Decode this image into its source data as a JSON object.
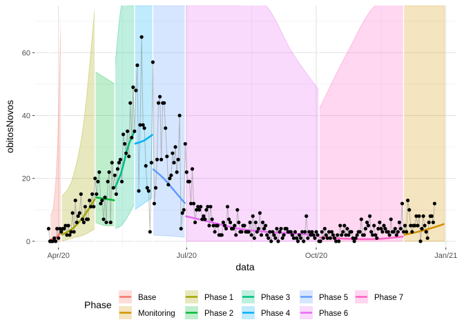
{
  "chart_data": {
    "type": "line",
    "xlabel": "data",
    "ylabel": "obitosNovos",
    "x_ticks": [
      "Apr/20",
      "Jul/20",
      "Oct/20",
      "Jan/21"
    ],
    "x_tick_dates": [
      "2020-04-01",
      "2020-07-01",
      "2020-10-01",
      "2021-01-01"
    ],
    "y_ticks": [
      0,
      20,
      40,
      60
    ],
    "xlim": [
      "2020-03-15",
      "2021-01-08"
    ],
    "ylim": [
      -2,
      75
    ],
    "grid": true,
    "legend_position": "bottom",
    "legend_title": "Phase",
    "phases": [
      {
        "name": "Base",
        "color": "#F8766D",
        "start": "2020-03-26",
        "end": "2020-04-03",
        "fit": [
          [
            0.5,
            1.0,
            3.0
          ],
          null
        ],
        "band": [
          [
            8,
            12,
            30,
            80
          ],
          [
            0,
            0,
            0,
            0
          ]
        ]
      },
      {
        "name": "Phase 1",
        "color": "#A3A500",
        "start": "2020-04-03",
        "end": "2020-04-27",
        "fit": [
          [
            2.0,
            4.0,
            8.0,
            13.5
          ],
          null
        ],
        "band": [
          [
            14,
            20,
            38,
            80
          ],
          [
            0,
            1,
            2,
            4
          ]
        ]
      },
      {
        "name": "Phase 2",
        "color": "#00BA38",
        "start": "2020-04-27",
        "end": "2020-05-11",
        "fit": [
          [
            14,
            13.5,
            13
          ],
          null
        ],
        "band": [
          [
            54,
            52,
            50
          ],
          [
            6,
            5,
            5
          ]
        ]
      },
      {
        "name": "Phase 3",
        "color": "#00BF7D",
        "start": "2020-05-11",
        "end": "2020-05-25",
        "fit": [
          [
            17,
            22,
            30,
            35
          ],
          null
        ],
        "band": [
          [
            55,
            75,
            80,
            80
          ],
          [
            4,
            5,
            8,
            12
          ]
        ]
      },
      {
        "name": "Phase 4",
        "color": "#00B0F6",
        "start": "2020-05-25",
        "end": "2020-06-07",
        "fit": [
          [
            31,
            32,
            34
          ],
          null
        ],
        "band": [
          [
            80,
            80,
            80
          ],
          [
            10,
            12,
            14
          ]
        ]
      },
      {
        "name": "Phase 5",
        "color": "#619CFF",
        "start": "2020-06-07",
        "end": "2020-06-30",
        "fit": [
          [
            23,
            20,
            16,
            12
          ],
          null
        ],
        "band": [
          [
            80,
            80,
            80,
            80
          ],
          [
            2,
            1.8,
            1.6,
            1.3
          ]
        ]
      },
      {
        "name": "Phase 6",
        "color": "#E76BF3",
        "start": "2020-06-30",
        "end": "2020-10-03",
        "fit": [
          [
            8,
            6,
            4,
            3,
            2.5,
            1.8
          ],
          null
        ],
        "band": [
          [
            80,
            80,
            80,
            80,
            60,
            48
          ],
          [
            0,
            0,
            0,
            0,
            0,
            0
          ]
        ]
      },
      {
        "name": "Phase 7",
        "color": "#FF61C3",
        "start": "2020-10-03",
        "end": "2020-12-02",
        "fit": [
          [
            1.2,
            0.8,
            0.7,
            1.5
          ],
          null
        ],
        "band": [
          [
            42,
            60,
            80,
            80
          ],
          [
            0,
            0,
            0,
            0
          ]
        ]
      },
      {
        "name": "Monitoring",
        "color": "#D39200",
        "start": "2020-12-02",
        "end": "2020-12-31",
        "fit": [
          [
            2.0,
            3.5,
            5.5
          ],
          null
        ],
        "band": [
          [
            80,
            80,
            80
          ],
          [
            0,
            0,
            0
          ]
        ]
      }
    ],
    "legend_order": [
      "Base",
      "Monitoring",
      "Phase 1",
      "Phase 2",
      "Phase 3",
      "Phase 4",
      "Phase 5",
      "Phase 6",
      "Phase 7"
    ],
    "series": [
      {
        "name": "obitosNovos",
        "start": "2020-03-25",
        "values": [
          4,
          0,
          0,
          0,
          1,
          0,
          4,
          1,
          4,
          3,
          4,
          4,
          5,
          2,
          5,
          2,
          3,
          9,
          3,
          13,
          6,
          8,
          9,
          15,
          7,
          6,
          11,
          7,
          7,
          13,
          11,
          15,
          11,
          20,
          15,
          19,
          22,
          12,
          13,
          7,
          14,
          6,
          19,
          22,
          6,
          25,
          17,
          21,
          15,
          23,
          25,
          26,
          19,
          34,
          31,
          28,
          35,
          27,
          44,
          33,
          49,
          35,
          48,
          56,
          16,
          37,
          65,
          37,
          36,
          24,
          17,
          16,
          3,
          25,
          57,
          12,
          17,
          26,
          44,
          46,
          26,
          44,
          44,
          36,
          27,
          18,
          20,
          21,
          28,
          25,
          30,
          22,
          26,
          40,
          4,
          9,
          10,
          31,
          22,
          19,
          19,
          12,
          23,
          12,
          6,
          10,
          11,
          10,
          11,
          7,
          8,
          7,
          10,
          11,
          5,
          11,
          7,
          5,
          3,
          5,
          5,
          2,
          2,
          2,
          6,
          5,
          4,
          11,
          7,
          6,
          4,
          4,
          5,
          2,
          10,
          6,
          3,
          3,
          5,
          5,
          3,
          3,
          3,
          6,
          2,
          8,
          1,
          6,
          3,
          4,
          9,
          2,
          6,
          4,
          5,
          2,
          1,
          3,
          0,
          3,
          2,
          1,
          4,
          0,
          3,
          4,
          1,
          2,
          4,
          4,
          3,
          3,
          3,
          2,
          1,
          3,
          1,
          0,
          2,
          1,
          3,
          0,
          3,
          8,
          1,
          3,
          2,
          3,
          2,
          1,
          3,
          2,
          0,
          0,
          3,
          1,
          4,
          2,
          1,
          3,
          1,
          3,
          2,
          1,
          0,
          2,
          0,
          5,
          2,
          3,
          5,
          2,
          4,
          2,
          3,
          3,
          1,
          0,
          1,
          2,
          3,
          3,
          7,
          2,
          2,
          4,
          6,
          5,
          8,
          3,
          2,
          5,
          2,
          1,
          4,
          6,
          4,
          3,
          5,
          4,
          3,
          3,
          2,
          7,
          3,
          3,
          4,
          2,
          3,
          6,
          4,
          12,
          3,
          5,
          3,
          13,
          10,
          5,
          3,
          5,
          5,
          8,
          5,
          8,
          0,
          4,
          8,
          5,
          3,
          1,
          6,
          8,
          8,
          6,
          12
        ]
      }
    ]
  }
}
